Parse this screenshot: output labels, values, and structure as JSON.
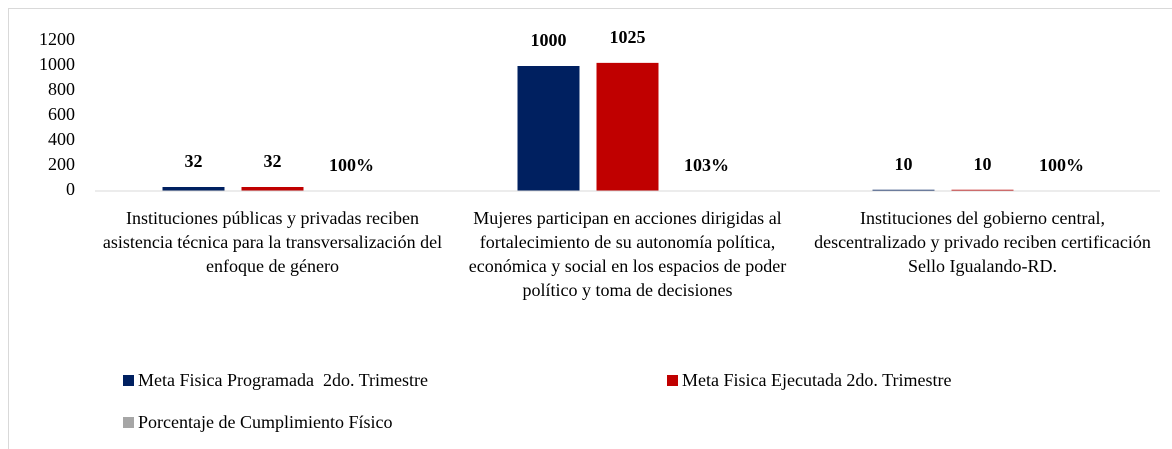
{
  "chart_data": {
    "type": "bar",
    "categories": [
      "Instituciones públicas y privadas reciben asistencia técnica para la transversalización del enfoque de género",
      "Mujeres participan en acciones dirigidas al fortalecimiento de su autonomía política, económica y social en los espacios de poder político y toma de decisiones",
      "Instituciones del gobierno central, descentralizado y privado reciben certificación Sello Igualando-RD."
    ],
    "series": [
      {
        "name": "Meta Fisica Programada  2do. Trimestre",
        "color": "#002060",
        "values": [
          32,
          1000,
          10
        ]
      },
      {
        "name": "Meta Fisica Ejecutada 2do. Trimestre",
        "color": "#c00000",
        "values": [
          32,
          1025,
          10
        ]
      },
      {
        "name": "Porcentaje de Cumplimiento Físico",
        "color": "#a6a6a6",
        "values": [
          1,
          1.03,
          1
        ],
        "value_labels": [
          "100%",
          "103%",
          "100%"
        ]
      }
    ],
    "ylim": [
      0,
      1200
    ],
    "yticks": [
      0,
      200,
      400,
      600,
      800,
      1000,
      1200
    ],
    "grid": false
  }
}
